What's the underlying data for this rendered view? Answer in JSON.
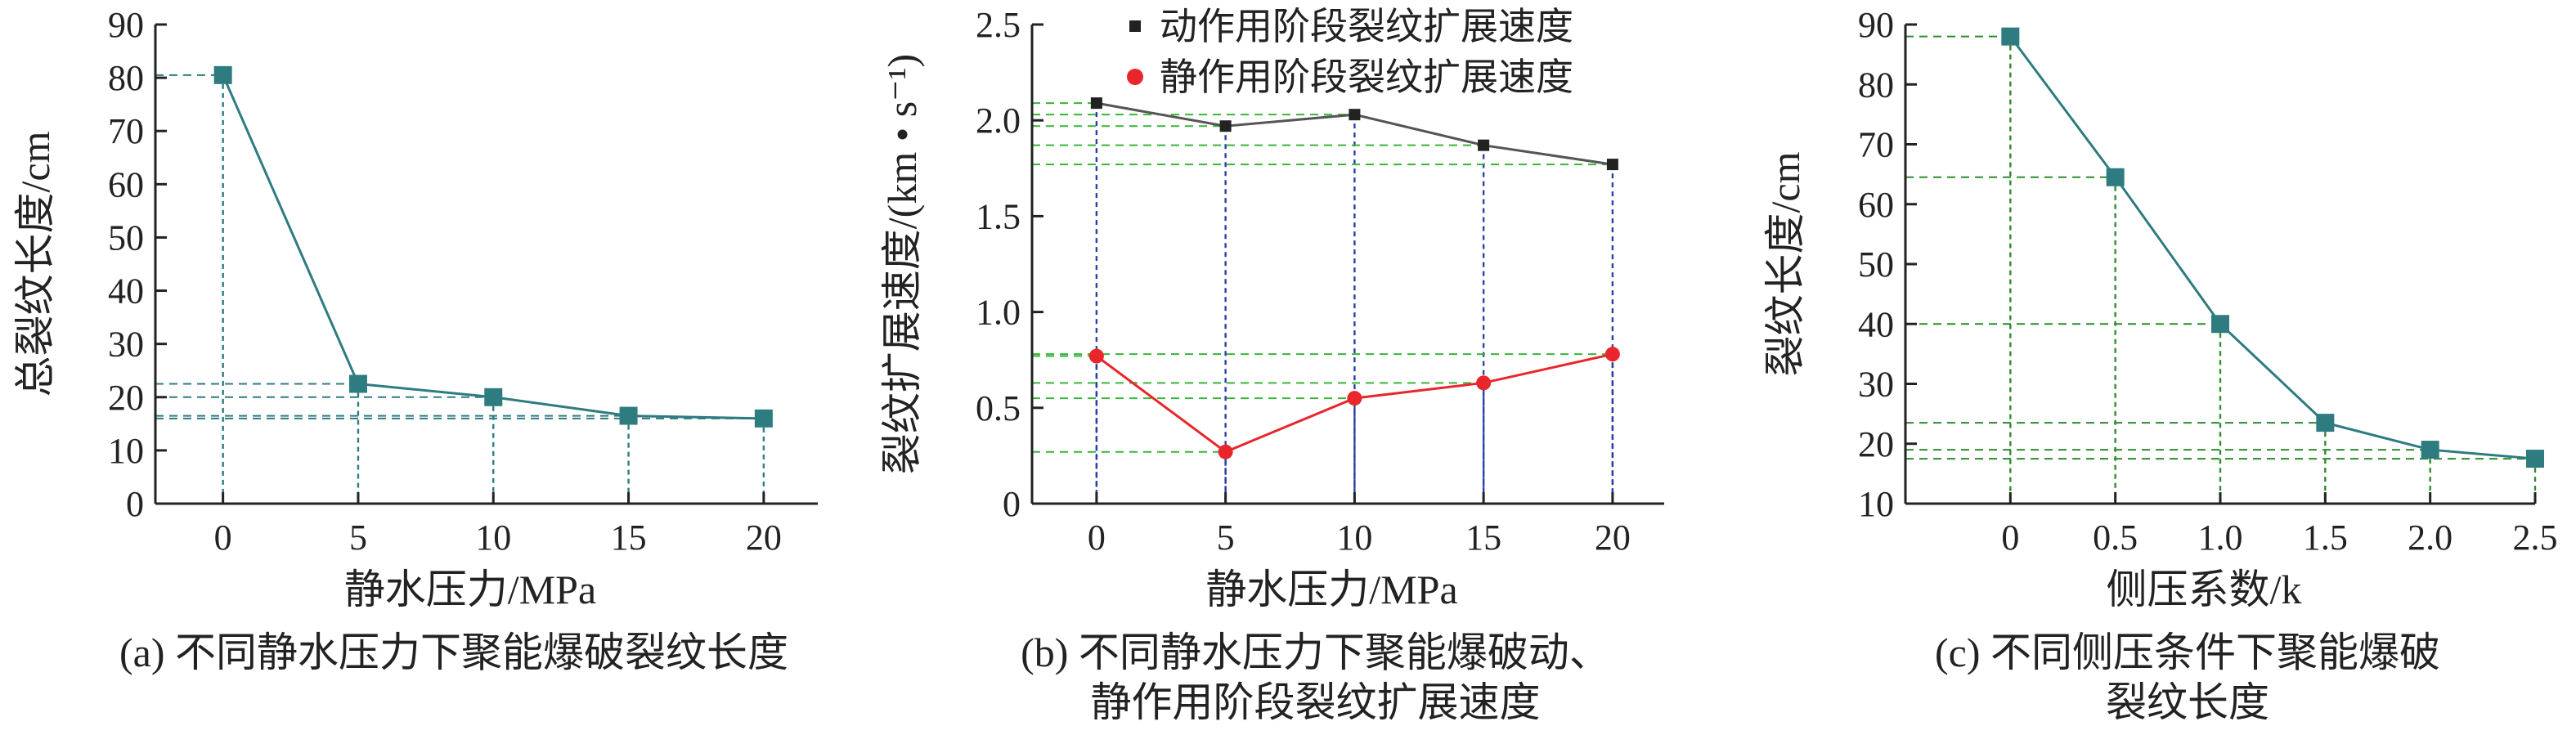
{
  "chart_data": [
    {
      "type": "line",
      "title": "",
      "caption": "(a) 不同静水压力下聚能爆破裂纹长度",
      "xlabel": "静水压力/MPa",
      "ylabel": "总裂纹长度/cm",
      "xlim": [
        -2.5,
        22
      ],
      "ylim": [
        0,
        90
      ],
      "xticks": [
        "0",
        "5",
        "10",
        "15",
        "20"
      ],
      "yticks": [
        "0",
        "10",
        "20",
        "30",
        "40",
        "50",
        "60",
        "70",
        "80",
        "90"
      ],
      "grid": false,
      "x": [
        0,
        5,
        10,
        15,
        20
      ],
      "series": [
        {
          "values": [
            80.5,
            22.5,
            20.0,
            16.5,
            16.0
          ],
          "color": "#2e7b80",
          "marker": "square"
        }
      ]
    },
    {
      "type": "line",
      "title": "",
      "caption": [
        "(b) 不同静水压力下聚能爆破动、",
        "静作用阶段裂纹扩展速度"
      ],
      "xlabel": "静水压力/MPa",
      "ylabel": "裂纹扩展速度/(km • s⁻¹)",
      "xlim": [
        -2.5,
        22
      ],
      "ylim": [
        0,
        2.5
      ],
      "xticks": [
        "0",
        "5",
        "10",
        "15",
        "20"
      ],
      "yticks": [
        "0",
        "0.5",
        "1.0",
        "1.5",
        "2.0",
        "2.5"
      ],
      "grid": false,
      "legend": "top-right",
      "x": [
        0,
        5,
        10,
        15,
        20
      ],
      "series": [
        {
          "name": "动作用阶段裂纹扩展速度",
          "values": [
            2.09,
            1.97,
            2.03,
            1.87,
            1.77
          ],
          "color": "#222222",
          "marker": "square"
        },
        {
          "name": "静作用阶段裂纹扩展速度",
          "values": [
            0.77,
            0.27,
            0.55,
            0.63,
            0.78
          ],
          "color": "#e8262c",
          "marker": "circle"
        }
      ]
    },
    {
      "type": "line",
      "title": "",
      "caption": [
        "(c) 不同侧压条件下聚能爆破",
        "裂纹长度"
      ],
      "xlabel": "侧压系数/k",
      "ylabel": "裂纹长度/cm",
      "xlim": [
        -0.5,
        2.5
      ],
      "ylim": [
        10,
        90
      ],
      "xticks": [
        "0",
        "0.5",
        "1.0",
        "1.5",
        "2.0",
        "2.5"
      ],
      "yticks": [
        "10",
        "20",
        "30",
        "40",
        "50",
        "60",
        "70",
        "80",
        "90"
      ],
      "grid": false,
      "x": [
        0,
        0.5,
        1.0,
        1.5,
        2.0,
        2.5
      ],
      "series": [
        {
          "values": [
            88.0,
            64.5,
            40.0,
            23.5,
            19.0,
            17.5
          ],
          "color": "#2e7b80",
          "marker": "square"
        }
      ]
    }
  ]
}
